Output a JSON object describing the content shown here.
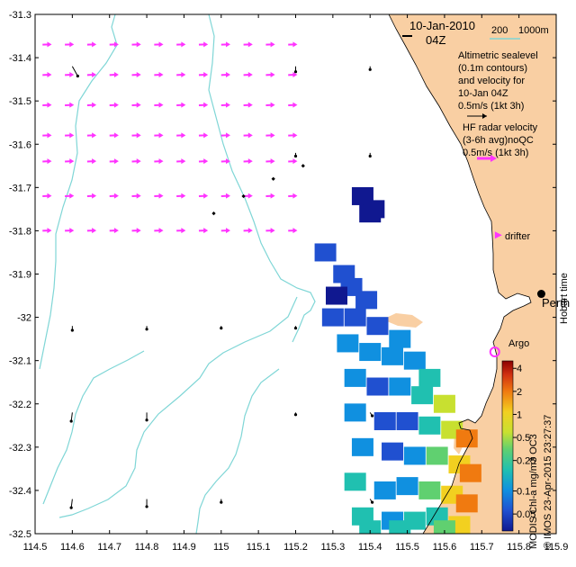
{
  "header": {
    "date": "10-Jan-2010",
    "time": "04Z"
  },
  "bathymetry_legend": {
    "shallow": "200",
    "deep": "1000m",
    "color": "#7fd6d6"
  },
  "altimetry_note": [
    "Altimetric sealevel",
    "(0.1m contours)",
    "and velocity for",
    "10-Jan 04Z",
    "0.5m/s (1kt 3h)"
  ],
  "hf_radar_note": [
    "HF radar velocity",
    "(3-6h avg)noQC",
    "0.5m/s (1kt 3h)"
  ],
  "drifter_label": "drifter",
  "argo_label": "Argo",
  "city_label": "Perth",
  "hobart_label": "Hobart time",
  "credit": "© IMOS 23-Apr-2015 23:27:37",
  "product_label": "MODIS Chl-a mg/m3 OC3",
  "colorbar": {
    "ticks": [
      "4",
      "2",
      "1",
      "0.5",
      "0.25",
      "0.1",
      "0.05"
    ],
    "colors": [
      "#8b0000",
      "#d03010",
      "#f07a10",
      "#f2d020",
      "#c8e030",
      "#60d070",
      "#20c0b0",
      "#1090e0",
      "#2050d0",
      "#101890"
    ]
  },
  "colors": {
    "land": "#f9cfa3",
    "radar_vector": "#ff33ff",
    "altimetry_vector": "#000000"
  },
  "axes": {
    "x_ticks": [
      "114.5",
      "114.6",
      "114.7",
      "114.8",
      "114.9",
      "115",
      "115.1",
      "115.2",
      "115.3",
      "115.4",
      "115.5",
      "115.6",
      "115.7",
      "115.8",
      "115.9"
    ],
    "y_ticks": [
      "-31.3",
      "-31.4",
      "-31.5",
      "-31.6",
      "-31.7",
      "-31.8",
      "-31.9",
      "-32",
      "-32.1",
      "-32.2",
      "-32.3",
      "-32.4",
      "-32.5"
    ],
    "xlim": [
      114.5,
      115.9
    ],
    "ylim": [
      -32.5,
      -31.3
    ]
  },
  "chart_data": {
    "type": "map",
    "radar_vectors": {
      "lons": [
        114.52,
        114.58,
        114.64,
        114.7,
        114.76,
        114.82,
        114.88,
        114.94,
        115.0,
        115.06,
        115.12,
        115.18
      ],
      "lats": [
        -31.37,
        -31.44,
        -31.51,
        -31.58,
        -31.64,
        -31.72,
        -31.8
      ],
      "u_ms": 0.45,
      "v_ms": 0.02
    },
    "altimetry_arrows": [
      {
        "lon": 114.6,
        "lat": -31.42,
        "u": 0.1,
        "v": -0.18
      },
      {
        "lon": 114.6,
        "lat": -32.02,
        "u": 0.0,
        "v": -0.08
      },
      {
        "lon": 114.6,
        "lat": -32.22,
        "u": -0.02,
        "v": -0.16
      },
      {
        "lon": 114.6,
        "lat": -32.42,
        "u": -0.02,
        "v": -0.16
      },
      {
        "lon": 114.8,
        "lat": -32.02,
        "u": 0.0,
        "v": -0.06
      },
      {
        "lon": 114.8,
        "lat": -32.22,
        "u": 0.0,
        "v": -0.14
      },
      {
        "lon": 114.8,
        "lat": -32.42,
        "u": 0.0,
        "v": -0.14
      },
      {
        "lon": 115.0,
        "lat": -32.02,
        "u": 0.0,
        "v": -0.04
      },
      {
        "lon": 115.0,
        "lat": -32.42,
        "u": 0.0,
        "v": -0.06
      },
      {
        "lon": 115.2,
        "lat": -31.42,
        "u": 0.0,
        "v": -0.1
      },
      {
        "lon": 115.2,
        "lat": -31.62,
        "u": 0.0,
        "v": -0.06
      },
      {
        "lon": 115.2,
        "lat": -32.02,
        "u": 0.0,
        "v": -0.04
      },
      {
        "lon": 115.2,
        "lat": -32.22,
        "u": 0.0,
        "v": -0.04
      },
      {
        "lon": 115.4,
        "lat": -31.42,
        "u": 0.0,
        "v": -0.06
      },
      {
        "lon": 115.4,
        "lat": -31.62,
        "u": 0.0,
        "v": -0.06
      },
      {
        "lon": 115.4,
        "lat": -32.22,
        "u": 0.04,
        "v": -0.06
      },
      {
        "lon": 115.4,
        "lat": -32.42,
        "u": 0.04,
        "v": -0.06
      }
    ],
    "altimetry_dots": [
      {
        "lon": 115.06,
        "lat": -31.72
      },
      {
        "lon": 114.98,
        "lat": -31.76
      },
      {
        "lon": 115.14,
        "lat": -31.68
      },
      {
        "lon": 115.22,
        "lat": -31.65
      }
    ],
    "drifter": {
      "lon": 115.74,
      "lat": -31.81
    },
    "argo": {
      "lon": 115.735,
      "lat": -32.08
    },
    "perth": {
      "lon": 115.86,
      "lat": -31.95
    },
    "chl_cells": [
      [
        115.38,
        -31.72,
        0.05
      ],
      [
        115.4,
        -31.76,
        0.02
      ],
      [
        115.41,
        -31.75,
        0.05
      ],
      [
        115.28,
        -31.85,
        0.08
      ],
      [
        115.33,
        -31.9,
        0.06
      ],
      [
        115.35,
        -31.93,
        0.06
      ],
      [
        115.39,
        -31.96,
        0.07
      ],
      [
        115.31,
        -31.95,
        0.05
      ],
      [
        115.3,
        -32.0,
        0.06
      ],
      [
        115.36,
        -32.0,
        0.07
      ],
      [
        115.42,
        -32.02,
        0.08
      ],
      [
        115.48,
        -32.05,
        0.1
      ],
      [
        115.34,
        -32.06,
        0.09
      ],
      [
        115.4,
        -32.08,
        0.1
      ],
      [
        115.46,
        -32.09,
        0.11
      ],
      [
        115.52,
        -32.1,
        0.13
      ],
      [
        115.56,
        -32.14,
        0.18
      ],
      [
        115.36,
        -32.14,
        0.1
      ],
      [
        115.42,
        -32.16,
        0.08
      ],
      [
        115.48,
        -32.16,
        0.09
      ],
      [
        115.54,
        -32.18,
        0.16
      ],
      [
        115.6,
        -32.2,
        0.4
      ],
      [
        115.36,
        -32.22,
        0.12
      ],
      [
        115.44,
        -32.24,
        0.07
      ],
      [
        115.5,
        -32.24,
        0.08
      ],
      [
        115.56,
        -32.25,
        0.2
      ],
      [
        115.62,
        -32.26,
        0.6
      ],
      [
        115.66,
        -32.28,
        1.2
      ],
      [
        115.38,
        -32.3,
        0.12
      ],
      [
        115.46,
        -32.31,
        0.08
      ],
      [
        115.52,
        -32.32,
        0.1
      ],
      [
        115.58,
        -32.32,
        0.3
      ],
      [
        115.64,
        -32.34,
        0.9
      ],
      [
        115.67,
        -32.36,
        1.6
      ],
      [
        115.36,
        -32.38,
        0.14
      ],
      [
        115.44,
        -32.4,
        0.1
      ],
      [
        115.5,
        -32.39,
        0.11
      ],
      [
        115.56,
        -32.4,
        0.25
      ],
      [
        115.62,
        -32.41,
        0.7
      ],
      [
        115.66,
        -32.43,
        1.1
      ],
      [
        115.38,
        -32.46,
        0.16
      ],
      [
        115.46,
        -32.47,
        0.12
      ],
      [
        115.52,
        -32.47,
        0.14
      ],
      [
        115.58,
        -32.46,
        0.22
      ],
      [
        115.64,
        -32.48,
        0.8
      ],
      [
        115.4,
        -32.49,
        0.14
      ],
      [
        115.48,
        -32.49,
        0.15
      ],
      [
        115.6,
        -32.49,
        0.35
      ]
    ],
    "ylim": [
      -32.5,
      -31.3
    ],
    "xlim": [
      114.5,
      115.9
    ]
  }
}
